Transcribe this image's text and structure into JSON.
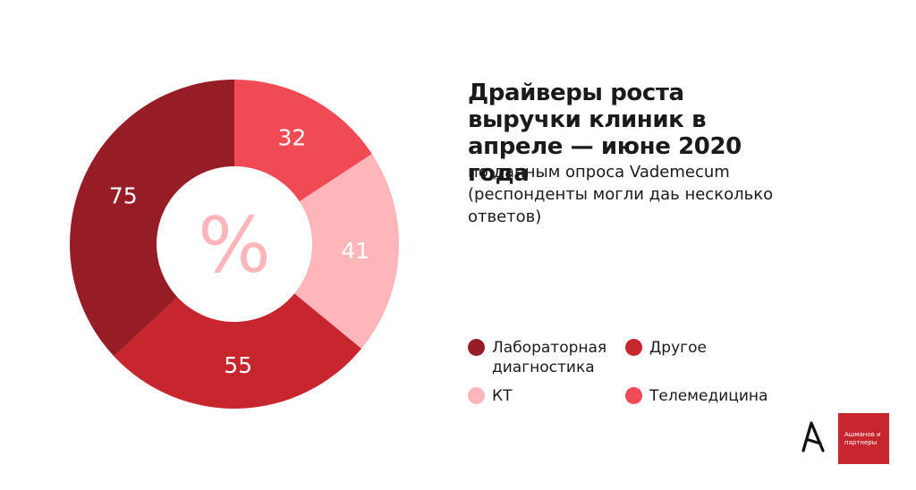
{
  "chart_data": {
    "type": "pie",
    "categories": [
      "Телемедицина",
      "КТ",
      "Другое",
      "Лабораторная диагностика"
    ],
    "values": [
      32,
      41,
      55,
      75
    ],
    "colors": [
      "#f04a55",
      "#ffb6bb",
      "#c8262f",
      "#961d25"
    ],
    "center_symbol": "%",
    "title": "Драйверы роста выручки клиник в апреле — июне 2020 года",
    "subtitle": "по данным опроса Vademecum (респонденты могли дать несколько ответов)",
    "legend": "right"
  },
  "text": {
    "title": "Драйверы роста выручки клиник в апреле — июне 2020 года",
    "subtitle": "по данным опроса Vademecum (респонденты могли даь несколько ответов)"
  },
  "legend": {
    "lab": {
      "label": "Лабораторная диагностика",
      "color": "#961d25"
    },
    "other": {
      "label": "Другое",
      "color": "#c8262f"
    },
    "ct": {
      "label": "КТ",
      "color": "#ffb6bb"
    },
    "tele": {
      "label": "Телемедицина",
      "color": "#f04a55"
    }
  },
  "logo": {
    "text": "Ашманов и партнеры",
    "mark": "A"
  }
}
